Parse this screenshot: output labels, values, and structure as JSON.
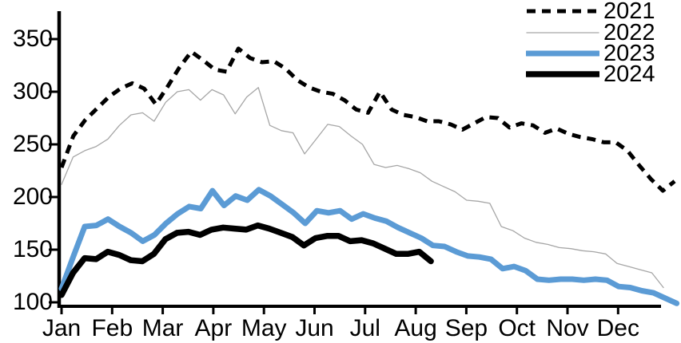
{
  "chart_data": {
    "type": "line",
    "title": "",
    "xlabel": "",
    "ylabel": "",
    "x_unit": "week of year",
    "categories": [
      "Jan",
      "Feb",
      "Mar",
      "Apr",
      "May",
      "Jun",
      "Jul",
      "Aug",
      "Sep",
      "Oct",
      "Nov",
      "Dec"
    ],
    "yticks": [
      100,
      150,
      200,
      250,
      300,
      350
    ],
    "ylim": [
      95,
      365
    ],
    "grid": false,
    "legend_position": "top-right",
    "axis_color": "#000000",
    "series": [
      {
        "name": "2021",
        "color": "#000000",
        "style": "dashed",
        "line_width": 5,
        "x_start": 77,
        "x_step": 14.75,
        "values": [
          228,
          258,
          273,
          284,
          295,
          303,
          308,
          303,
          288,
          305,
          323,
          338,
          330,
          321,
          319,
          341,
          332,
          328,
          329,
          322,
          311,
          304,
          300,
          298,
          292,
          283,
          280,
          300,
          283,
          278,
          276,
          272,
          272,
          269,
          264,
          270,
          276,
          275,
          266,
          270,
          268,
          261,
          265,
          260,
          257,
          255,
          252,
          252,
          244,
          230,
          217,
          206,
          215
        ]
      },
      {
        "name": "2022",
        "color": "#a6a6a6",
        "style": "solid",
        "line_width": 1.3,
        "x_start": 77,
        "x_step": 14.48,
        "values": [
          212,
          238,
          244,
          248,
          255,
          268,
          278,
          280,
          272,
          290,
          300,
          302,
          292,
          302,
          297,
          279,
          295,
          304,
          268,
          263,
          261,
          241,
          255,
          269,
          267,
          258,
          250,
          231,
          228,
          230,
          227,
          223,
          215,
          210,
          205,
          197,
          196,
          194,
          172,
          168,
          161,
          157,
          155,
          152,
          151,
          149,
          148,
          146,
          137,
          134,
          131,
          128,
          114
        ]
      },
      {
        "name": "2023",
        "color": "#5b9bd5",
        "style": "solid",
        "line_width": 7,
        "x_start": 77,
        "x_step": 14.52,
        "values": [
          113,
          143,
          172,
          173,
          179,
          172,
          166,
          158,
          164,
          175,
          184,
          191,
          189,
          206,
          192,
          201,
          197,
          207,
          201,
          193,
          185,
          175,
          187,
          185,
          187,
          179,
          184,
          180,
          177,
          171,
          166,
          161,
          154,
          153,
          148,
          144,
          143,
          141,
          132,
          134,
          130,
          122,
          121,
          122,
          122,
          121,
          122,
          121,
          115,
          114,
          111,
          109,
          104,
          99
        ]
      },
      {
        "name": "2024",
        "color": "#000000",
        "style": "solid",
        "line_width": 7.5,
        "x_start": 77,
        "x_step": 14.44,
        "values": [
          107,
          128,
          142,
          141,
          148,
          145,
          140,
          139,
          146,
          160,
          166,
          167,
          164,
          169,
          171,
          170,
          169,
          173,
          170,
          166,
          162,
          154,
          161,
          163,
          163,
          158,
          159,
          156,
          151,
          146,
          146,
          148,
          139
        ]
      }
    ]
  }
}
